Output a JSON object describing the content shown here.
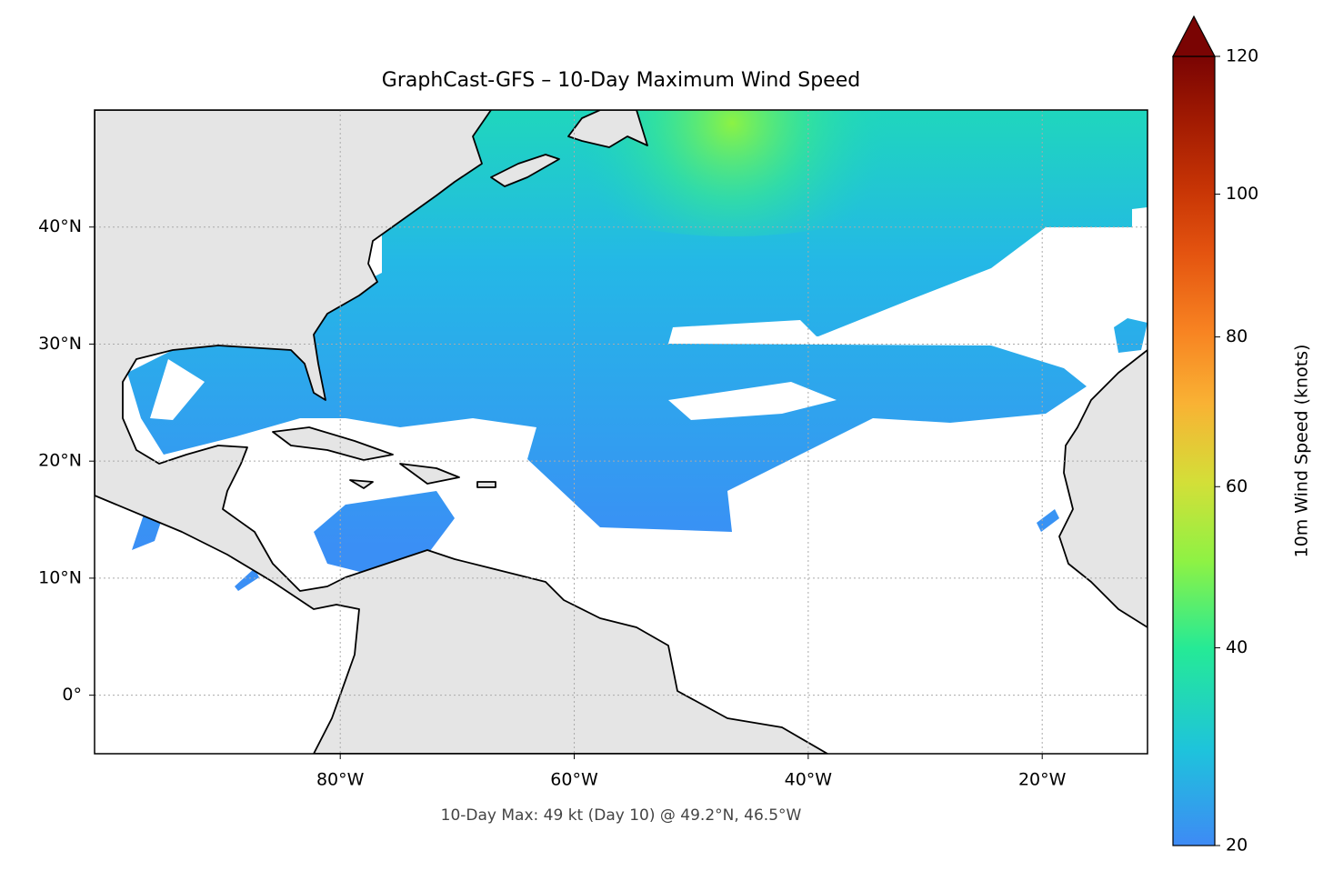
{
  "chart_data": {
    "type": "map",
    "title": "GraphCast-GFS – 10-Day Maximum Wind Speed",
    "annotation": "10-Day Max: 49 kt (Day 10) @ 49.2°N, 46.5°W",
    "xlim": [
      -101,
      -11
    ],
    "ylim": [
      -5,
      50
    ],
    "xticks": [
      {
        "value": -80,
        "label": "80°W"
      },
      {
        "value": -60,
        "label": "60°W"
      },
      {
        "value": -40,
        "label": "40°W"
      },
      {
        "value": -20,
        "label": "20°W"
      }
    ],
    "yticks": [
      {
        "value": 0,
        "label": "0°"
      },
      {
        "value": 10,
        "label": "10°N"
      },
      {
        "value": 20,
        "label": "20°N"
      },
      {
        "value": 30,
        "label": "30°N"
      },
      {
        "value": 40,
        "label": "40°N"
      }
    ],
    "grid": true,
    "colorbar": {
      "label": "10m Wind Speed (knots)",
      "lim": [
        20,
        120
      ],
      "ticks": [
        20,
        40,
        60,
        80,
        100,
        120
      ],
      "extend": "max",
      "colormap": "turbo",
      "gamma": 0.86
    }
  }
}
